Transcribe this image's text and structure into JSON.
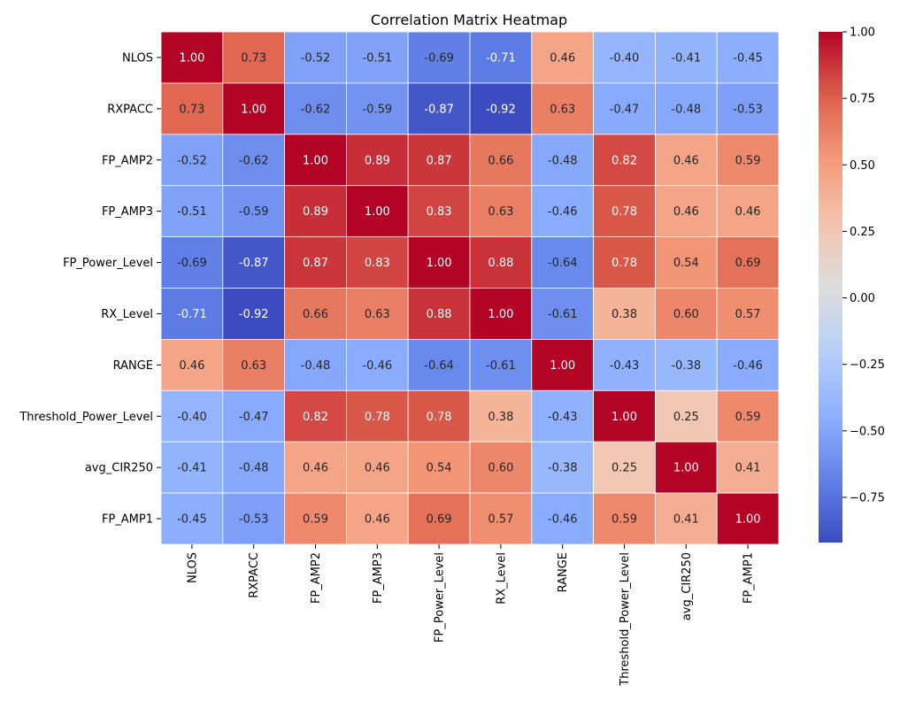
{
  "chart_data": {
    "type": "heatmap",
    "title": "Correlation Matrix Heatmap",
    "row_labels": [
      "NLOS",
      "RXPACC",
      "FP_AMP2",
      "FP_AMP3",
      "FP_Power_Level",
      "RX_Level",
      "RANGE",
      "Threshold_Power_Level",
      "avg_CIR250",
      "FP_AMP1"
    ],
    "col_labels": [
      "NLOS",
      "RXPACC",
      "FP_AMP2",
      "FP_AMP3",
      "FP_Power_Level",
      "RX_Level",
      "RANGE",
      "Threshold_Power_Level",
      "avg_CIR250",
      "FP_AMP1"
    ],
    "values": [
      [
        1.0,
        0.73,
        -0.52,
        -0.51,
        -0.69,
        -0.71,
        0.46,
        -0.4,
        -0.41,
        -0.45
      ],
      [
        0.73,
        1.0,
        -0.62,
        -0.59,
        -0.87,
        -0.92,
        0.63,
        -0.47,
        -0.48,
        -0.53
      ],
      [
        -0.52,
        -0.62,
        1.0,
        0.89,
        0.87,
        0.66,
        -0.48,
        0.82,
        0.46,
        0.59
      ],
      [
        -0.51,
        -0.59,
        0.89,
        1.0,
        0.83,
        0.63,
        -0.46,
        0.78,
        0.46,
        0.46
      ],
      [
        -0.69,
        -0.87,
        0.87,
        0.83,
        1.0,
        0.88,
        -0.64,
        0.78,
        0.54,
        0.69
      ],
      [
        -0.71,
        -0.92,
        0.66,
        0.63,
        0.88,
        1.0,
        -0.61,
        0.38,
        0.6,
        0.57
      ],
      [
        0.46,
        0.63,
        -0.48,
        -0.46,
        -0.64,
        -0.61,
        1.0,
        -0.43,
        -0.38,
        -0.46
      ],
      [
        -0.4,
        -0.47,
        0.82,
        0.78,
        0.78,
        0.38,
        -0.43,
        1.0,
        0.25,
        0.59
      ],
      [
        -0.41,
        -0.48,
        0.46,
        0.46,
        0.54,
        0.6,
        -0.38,
        0.25,
        1.0,
        0.41
      ],
      [
        -0.45,
        -0.53,
        0.59,
        0.46,
        0.69,
        0.57,
        -0.46,
        0.59,
        0.41,
        1.0
      ]
    ],
    "value_format": "0.00",
    "colormap": "coolwarm",
    "color_range": [
      -0.92,
      1.0
    ],
    "colorbar_ticks": [
      1.0,
      0.75,
      0.5,
      0.25,
      0.0,
      -0.25,
      -0.5,
      -0.75
    ],
    "colorbar_tick_labels": [
      "1.00",
      "0.75",
      "0.50",
      "0.25",
      "0.00",
      "−0.25",
      "−0.50",
      "−0.75"
    ],
    "grid_line_color": "#ffffff"
  }
}
